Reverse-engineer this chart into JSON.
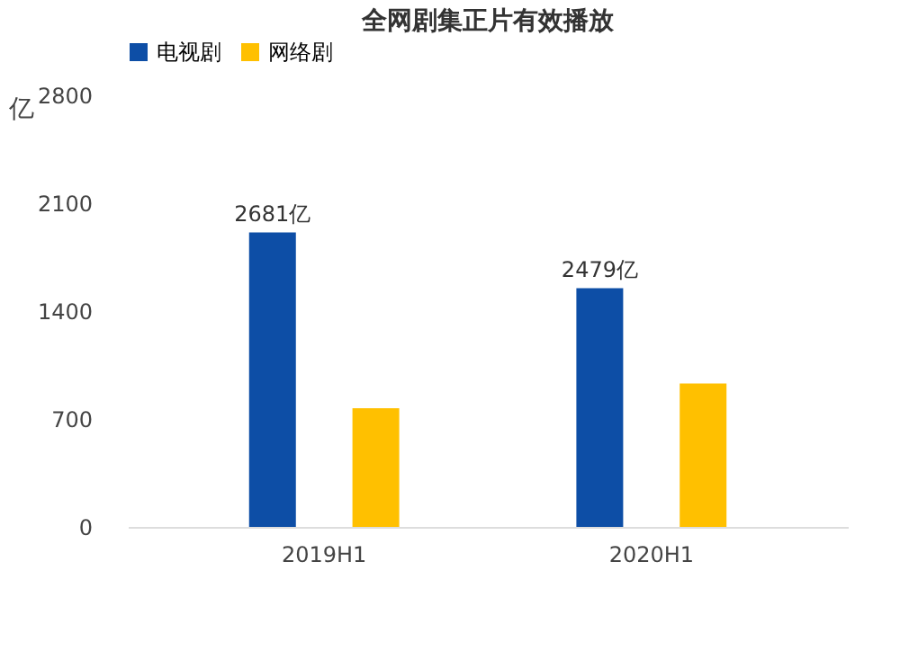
{
  "chart_data": {
    "type": "bar",
    "title": "全网剧集正片有效播放",
    "ylabel": "亿",
    "categories": [
      "2019H1",
      "2020H1"
    ],
    "series": [
      {
        "name": "电视剧",
        "color": "#0d4ea6",
        "values": [
          1911,
          1549
        ]
      },
      {
        "name": "网络剧",
        "color": "#ffc000",
        "values": [
          770,
          930
        ]
      }
    ],
    "totals": [
      "2681亿",
      "2479亿"
    ],
    "ylim": [
      0,
      2800
    ],
    "yticks": [
      0,
      700,
      1400,
      2100,
      2800
    ],
    "grid": false,
    "legend": "top"
  }
}
